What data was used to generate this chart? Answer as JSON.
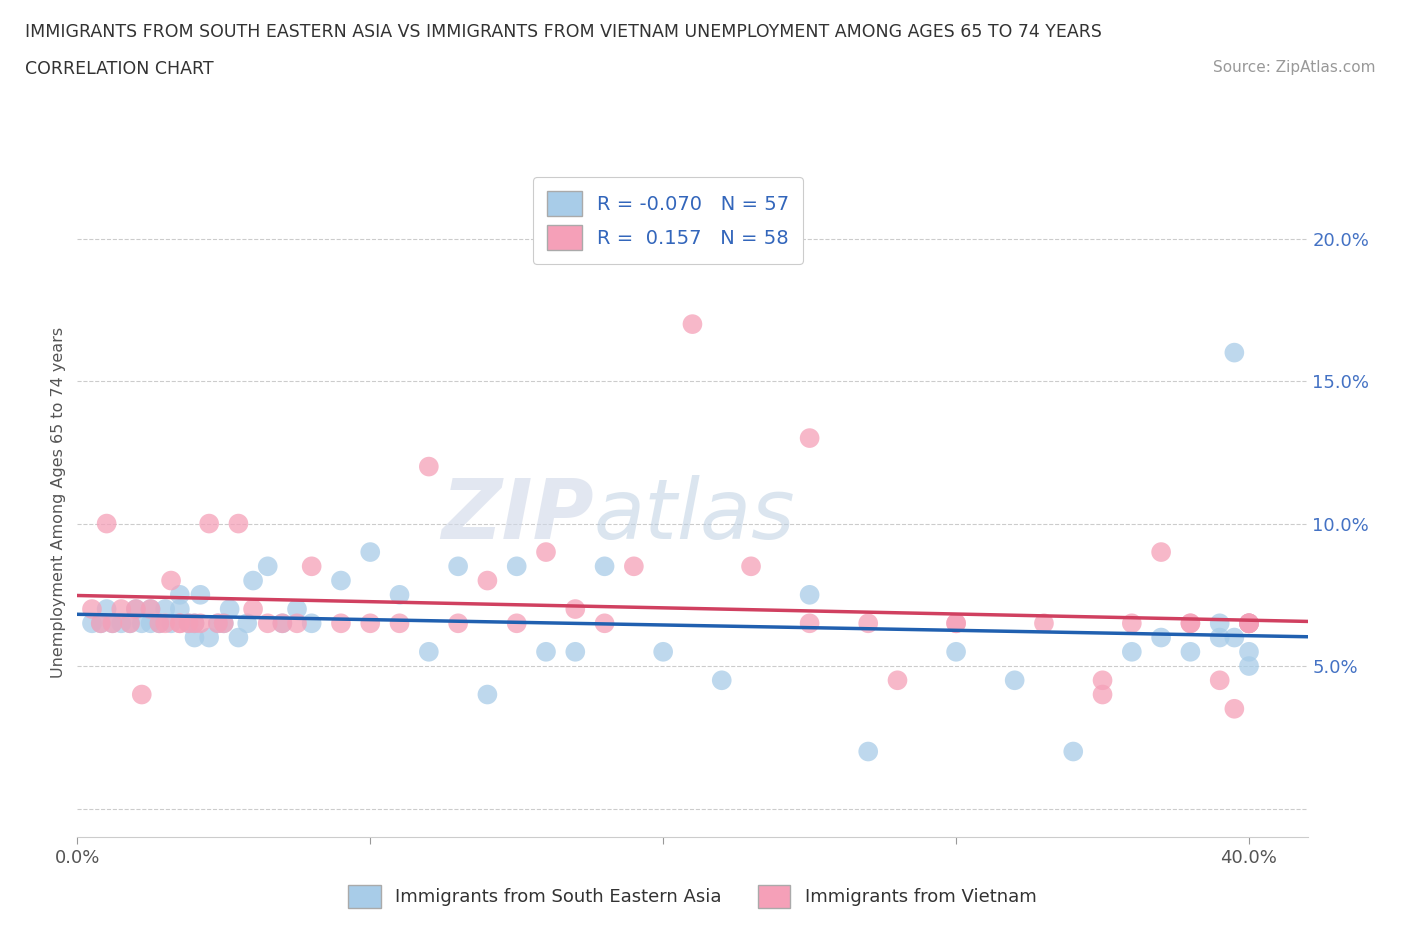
{
  "title_line1": "IMMIGRANTS FROM SOUTH EASTERN ASIA VS IMMIGRANTS FROM VIETNAM UNEMPLOYMENT AMONG AGES 65 TO 74 YEARS",
  "title_line2": "CORRELATION CHART",
  "source_text": "Source: ZipAtlas.com",
  "ylabel": "Unemployment Among Ages 65 to 74 years",
  "xlim": [
    0.0,
    0.42
  ],
  "ylim": [
    -0.01,
    0.225
  ],
  "xticks": [
    0.0,
    0.1,
    0.2,
    0.3,
    0.4
  ],
  "xticklabels": [
    "0.0%",
    "",
    "",
    "",
    "40.0%"
  ],
  "yticks": [
    0.0,
    0.05,
    0.1,
    0.15,
    0.2
  ],
  "yticklabels": [
    "",
    "5.0%",
    "10.0%",
    "15.0%",
    "20.0%"
  ],
  "watermark_zip": "ZIP",
  "watermark_atlas": "atlas",
  "blue_color": "#a8cce8",
  "pink_color": "#f5a0b8",
  "blue_line_color": "#2060b0",
  "pink_line_color": "#d04060",
  "legend_blue_label": "R = -0.070   N = 57",
  "legend_pink_label": "R =  0.157   N = 58",
  "legend_bottom_blue": "Immigrants from South Eastern Asia",
  "legend_bottom_pink": "Immigrants from Vietnam",
  "blue_scatter_x": [
    0.005,
    0.008,
    0.01,
    0.012,
    0.015,
    0.018,
    0.02,
    0.022,
    0.025,
    0.025,
    0.028,
    0.03,
    0.032,
    0.035,
    0.035,
    0.038,
    0.04,
    0.04,
    0.042,
    0.045,
    0.048,
    0.05,
    0.052,
    0.055,
    0.058,
    0.06,
    0.065,
    0.07,
    0.075,
    0.08,
    0.09,
    0.1,
    0.11,
    0.12,
    0.13,
    0.14,
    0.15,
    0.16,
    0.17,
    0.18,
    0.2,
    0.22,
    0.25,
    0.27,
    0.3,
    0.32,
    0.34,
    0.36,
    0.37,
    0.38,
    0.39,
    0.395,
    0.4,
    0.4,
    0.4,
    0.395,
    0.39
  ],
  "blue_scatter_y": [
    0.065,
    0.065,
    0.07,
    0.065,
    0.065,
    0.065,
    0.07,
    0.065,
    0.07,
    0.065,
    0.065,
    0.07,
    0.065,
    0.07,
    0.075,
    0.065,
    0.065,
    0.06,
    0.075,
    0.06,
    0.065,
    0.065,
    0.07,
    0.06,
    0.065,
    0.08,
    0.085,
    0.065,
    0.07,
    0.065,
    0.08,
    0.09,
    0.075,
    0.055,
    0.085,
    0.04,
    0.085,
    0.055,
    0.055,
    0.085,
    0.055,
    0.045,
    0.075,
    0.02,
    0.055,
    0.045,
    0.02,
    0.055,
    0.06,
    0.055,
    0.06,
    0.16,
    0.05,
    0.065,
    0.055,
    0.06,
    0.065
  ],
  "pink_scatter_x": [
    0.005,
    0.008,
    0.01,
    0.012,
    0.015,
    0.018,
    0.02,
    0.022,
    0.025,
    0.028,
    0.03,
    0.032,
    0.035,
    0.035,
    0.038,
    0.04,
    0.042,
    0.045,
    0.048,
    0.05,
    0.055,
    0.06,
    0.065,
    0.07,
    0.075,
    0.08,
    0.09,
    0.1,
    0.11,
    0.12,
    0.13,
    0.14,
    0.15,
    0.16,
    0.17,
    0.18,
    0.19,
    0.21,
    0.23,
    0.25,
    0.27,
    0.28,
    0.3,
    0.33,
    0.35,
    0.36,
    0.37,
    0.38,
    0.39,
    0.4,
    0.4,
    0.4,
    0.4,
    0.395,
    0.38,
    0.35,
    0.3,
    0.25
  ],
  "pink_scatter_y": [
    0.07,
    0.065,
    0.1,
    0.065,
    0.07,
    0.065,
    0.07,
    0.04,
    0.07,
    0.065,
    0.065,
    0.08,
    0.065,
    0.065,
    0.065,
    0.065,
    0.065,
    0.1,
    0.065,
    0.065,
    0.1,
    0.07,
    0.065,
    0.065,
    0.065,
    0.085,
    0.065,
    0.065,
    0.065,
    0.12,
    0.065,
    0.08,
    0.065,
    0.09,
    0.07,
    0.065,
    0.085,
    0.17,
    0.085,
    0.13,
    0.065,
    0.045,
    0.065,
    0.065,
    0.045,
    0.065,
    0.09,
    0.065,
    0.045,
    0.065,
    0.065,
    0.065,
    0.065,
    0.035,
    0.065,
    0.04,
    0.065,
    0.065
  ]
}
